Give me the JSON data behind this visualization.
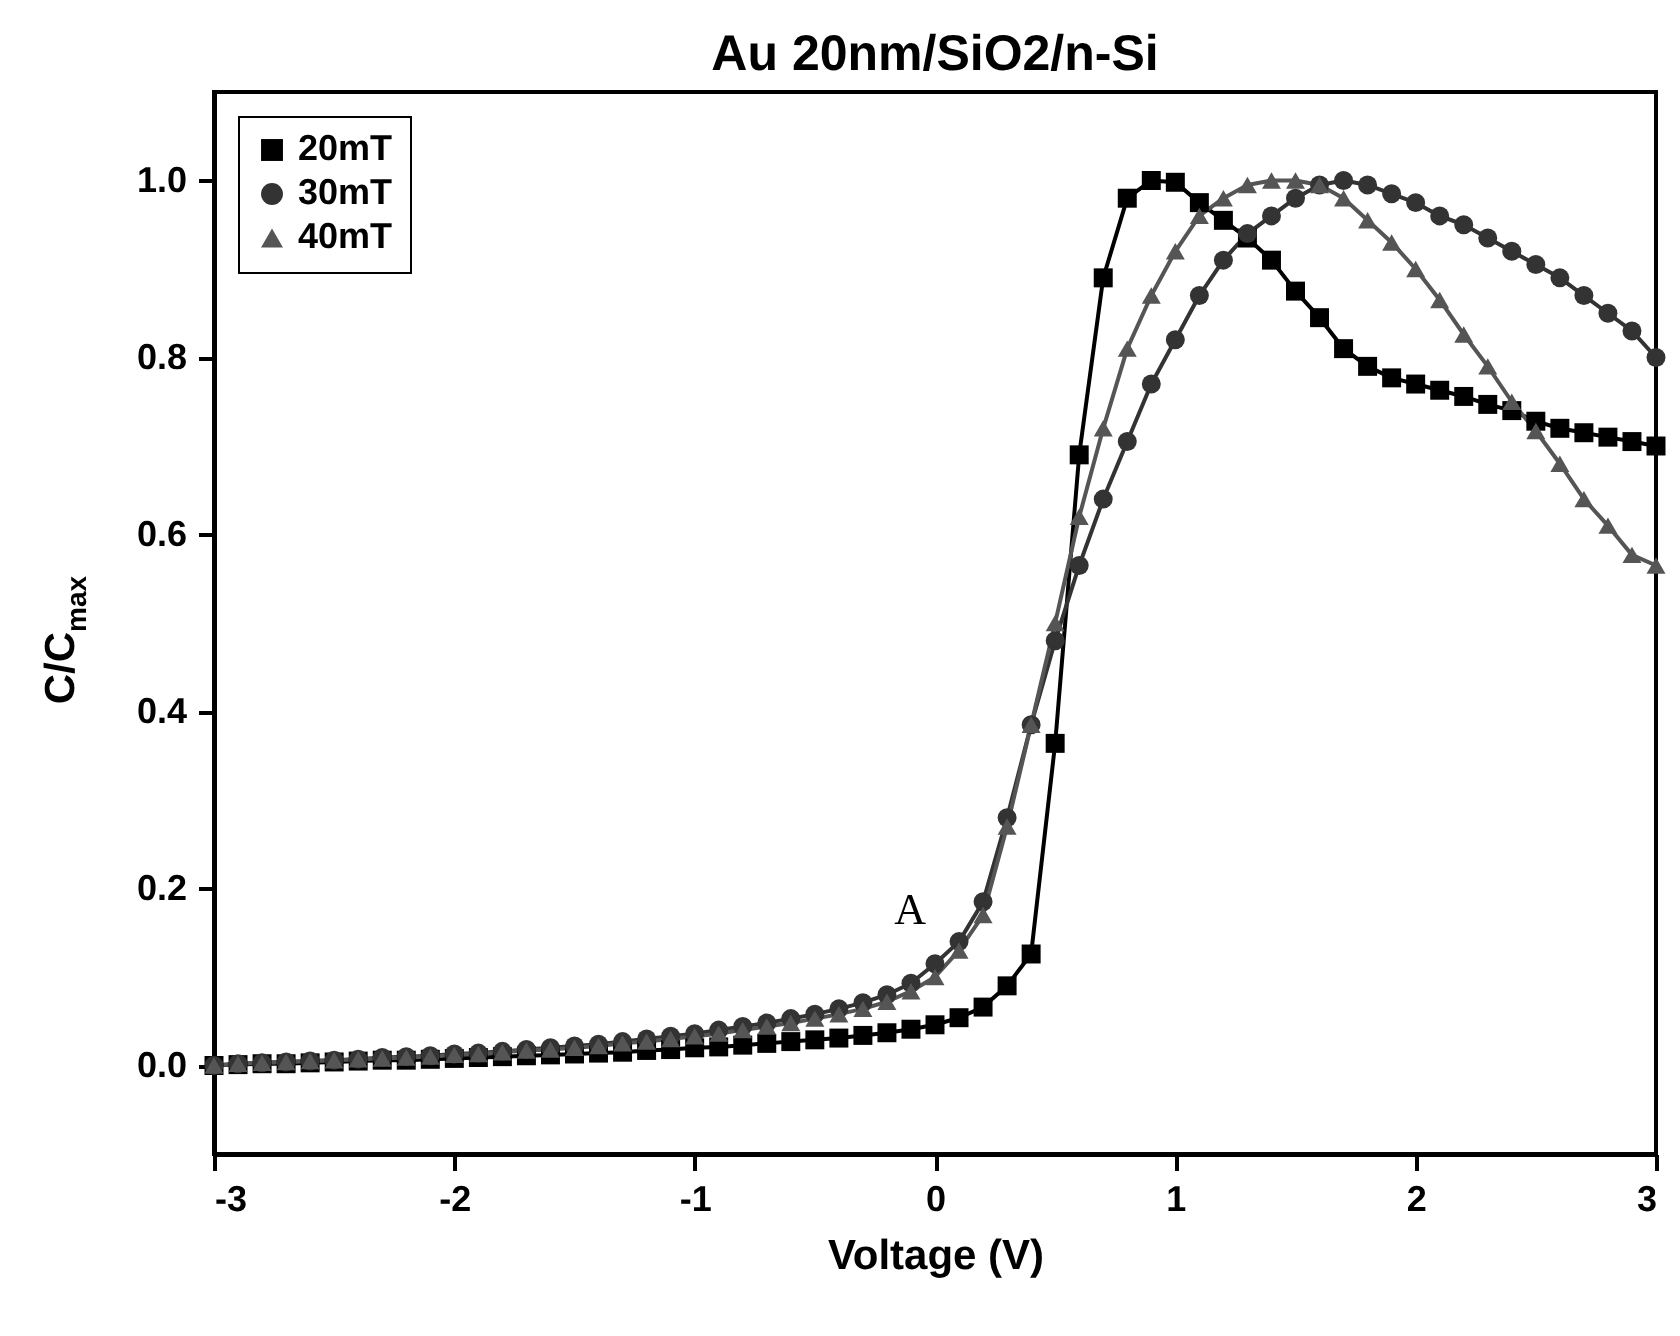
{
  "chart_data": {
    "type": "line",
    "title": "Au 20nm/SiO2/n-Si",
    "xlabel": "Voltage (V)",
    "ylabel": "C/C$_{max}$",
    "x": [
      -3.0,
      -2.9,
      -2.8,
      -2.7,
      -2.6,
      -2.5,
      -2.4,
      -2.3,
      -2.2,
      -2.1,
      -2.0,
      -1.9,
      -1.8,
      -1.7,
      -1.6,
      -1.5,
      -1.4,
      -1.3,
      -1.2,
      -1.1,
      -1.0,
      -0.9,
      -0.8,
      -0.7,
      -0.6,
      -0.5,
      -0.4,
      -0.3,
      -0.2,
      -0.1,
      0.0,
      0.1,
      0.2,
      0.3,
      0.4,
      0.5,
      0.6,
      0.7,
      0.8,
      0.9,
      1.0,
      1.1,
      1.2,
      1.3,
      1.4,
      1.5,
      1.6,
      1.7,
      1.8,
      1.9,
      2.0,
      2.1,
      2.2,
      2.3,
      2.4,
      2.5,
      2.6,
      2.7,
      2.8,
      2.9,
      3.0
    ],
    "series": [
      {
        "name": "20mT",
        "color": "#000000",
        "marker": "square",
        "values": [
          0.0,
          0.001,
          0.002,
          0.002,
          0.003,
          0.004,
          0.005,
          0.006,
          0.006,
          0.007,
          0.008,
          0.009,
          0.01,
          0.011,
          0.012,
          0.013,
          0.014,
          0.015,
          0.017,
          0.018,
          0.02,
          0.021,
          0.023,
          0.025,
          0.027,
          0.029,
          0.031,
          0.034,
          0.037,
          0.041,
          0.046,
          0.054,
          0.066,
          0.09,
          0.126,
          0.364,
          0.69,
          0.89,
          0.98,
          1.0,
          0.998,
          0.975,
          0.955,
          0.935,
          0.91,
          0.875,
          0.845,
          0.81,
          0.79,
          0.777,
          0.77,
          0.763,
          0.756,
          0.747,
          0.74,
          0.728,
          0.72,
          0.715,
          0.71,
          0.705,
          0.7
        ]
      },
      {
        "name": "30mT",
        "color": "#333333",
        "marker": "circle",
        "values": [
          0.0,
          0.002,
          0.003,
          0.004,
          0.005,
          0.006,
          0.007,
          0.009,
          0.01,
          0.011,
          0.013,
          0.014,
          0.016,
          0.018,
          0.02,
          0.022,
          0.024,
          0.027,
          0.03,
          0.033,
          0.036,
          0.04,
          0.044,
          0.048,
          0.053,
          0.058,
          0.064,
          0.071,
          0.08,
          0.093,
          0.115,
          0.14,
          0.185,
          0.28,
          0.385,
          0.48,
          0.565,
          0.64,
          0.705,
          0.77,
          0.82,
          0.87,
          0.91,
          0.94,
          0.96,
          0.98,
          0.995,
          1.0,
          0.995,
          0.985,
          0.975,
          0.96,
          0.95,
          0.935,
          0.92,
          0.905,
          0.89,
          0.87,
          0.85,
          0.83,
          0.8
        ]
      },
      {
        "name": "40mT",
        "color": "#555555",
        "marker": "triangle",
        "values": [
          0.0,
          0.002,
          0.003,
          0.004,
          0.005,
          0.006,
          0.007,
          0.008,
          0.009,
          0.01,
          0.012,
          0.013,
          0.015,
          0.017,
          0.018,
          0.02,
          0.022,
          0.025,
          0.027,
          0.03,
          0.033,
          0.036,
          0.04,
          0.044,
          0.048,
          0.053,
          0.058,
          0.064,
          0.072,
          0.084,
          0.1,
          0.13,
          0.17,
          0.27,
          0.385,
          0.5,
          0.62,
          0.72,
          0.81,
          0.87,
          0.92,
          0.96,
          0.98,
          0.995,
          1.0,
          1.0,
          0.995,
          0.98,
          0.955,
          0.93,
          0.9,
          0.865,
          0.826,
          0.79,
          0.75,
          0.717,
          0.68,
          0.64,
          0.61,
          0.577,
          0.565
        ]
      }
    ],
    "xlim": [
      -3,
      3
    ],
    "xticks": [
      {
        "value": -3,
        "label": "-3"
      },
      {
        "value": -2,
        "label": "-2"
      },
      {
        "value": -1,
        "label": "-1"
      },
      {
        "value": 0,
        "label": "0"
      },
      {
        "value": 1,
        "label": "1"
      },
      {
        "value": 2,
        "label": "2"
      },
      {
        "value": 3,
        "label": "3"
      }
    ],
    "ylim": [
      -0.1,
      1.1
    ],
    "yticks": [
      {
        "value": 0,
        "label": "0.0"
      },
      {
        "value": 0.2,
        "label": "0.2"
      },
      {
        "value": 0.4,
        "label": "0.4"
      },
      {
        "value": 0.6,
        "label": "0.6"
      },
      {
        "value": 0.8,
        "label": "0.8"
      },
      {
        "value": 1.0,
        "label": "1.0"
      }
    ],
    "annotations": [
      "A"
    ],
    "legend": "top left",
    "grid": false,
    "line_style": "solid"
  }
}
